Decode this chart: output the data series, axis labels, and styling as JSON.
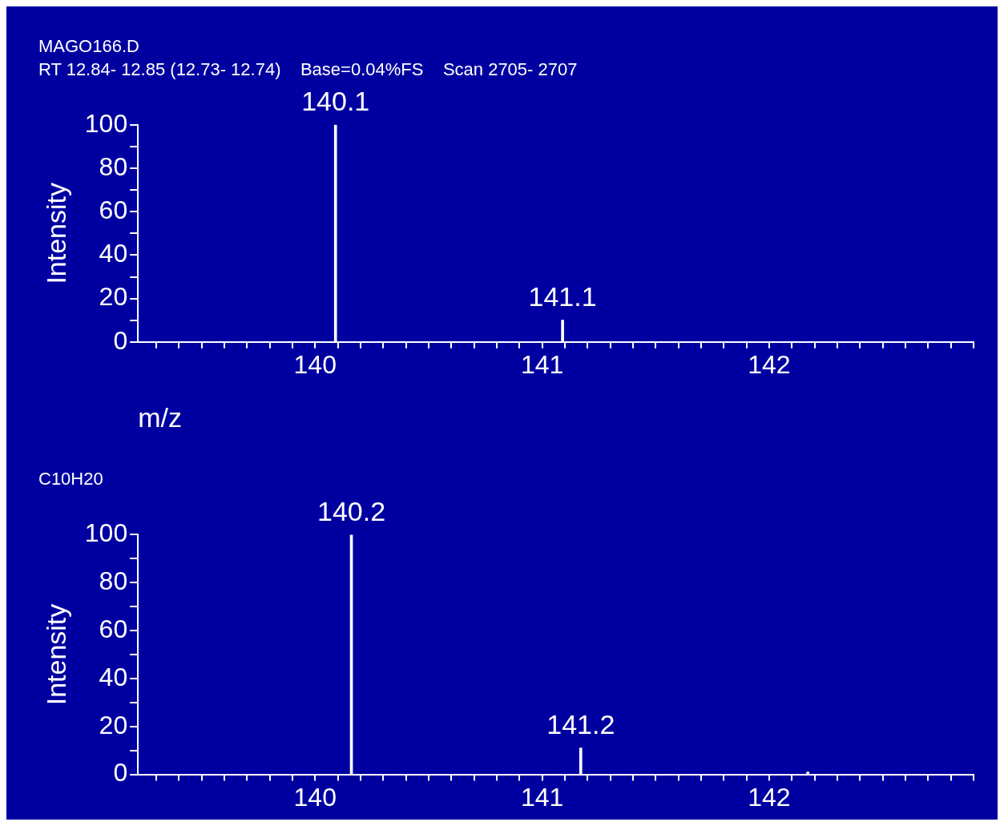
{
  "chart_data": [
    {
      "type": "bar",
      "title": "MAGO166.D",
      "subtitle": "RT 12.84- 12.85 (12.73- 12.74)    Base=0.04%FS    Scan 2705- 2707",
      "xlabel": "m/z",
      "ylabel": "Intensity",
      "x": [
        140.09,
        141.09
      ],
      "values": [
        100,
        10
      ],
      "color": "#ffffff",
      "annotations": [
        {
          "text": "140.1",
          "x": 140.09,
          "y": 100
        },
        {
          "text": "141.1",
          "x": 141.09,
          "y": 10
        }
      ],
      "xlim": [
        139.22,
        142.9
      ],
      "xticks": [
        {
          "value": 139.3,
          "label": null
        },
        {
          "value": 139.4,
          "label": null
        },
        {
          "value": 139.5,
          "label": null
        },
        {
          "value": 139.6,
          "label": null
        },
        {
          "value": 139.7,
          "label": null
        },
        {
          "value": 139.8,
          "label": null
        },
        {
          "value": 139.9,
          "label": null
        },
        140,
        {
          "value": 140.1,
          "label": null
        },
        {
          "value": 140.2,
          "label": null
        },
        {
          "value": 140.3,
          "label": null
        },
        {
          "value": 140.4,
          "label": null
        },
        {
          "value": 140.5,
          "label": null
        },
        {
          "value": 140.6,
          "label": null
        },
        {
          "value": 140.7,
          "label": null
        },
        {
          "value": 140.8,
          "label": null
        },
        {
          "value": 140.9,
          "label": null
        },
        141,
        {
          "value": 141.1,
          "label": null
        },
        {
          "value": 141.2,
          "label": null
        },
        {
          "value": 141.3,
          "label": null
        },
        {
          "value": 141.4,
          "label": null
        },
        {
          "value": 141.5,
          "label": null
        },
        {
          "value": 141.6,
          "label": null
        },
        {
          "value": 141.7,
          "label": null
        },
        {
          "value": 141.8,
          "label": null
        },
        {
          "value": 141.9,
          "label": null
        },
        142,
        {
          "value": 142.1,
          "label": null
        },
        {
          "value": 142.2,
          "label": null
        },
        {
          "value": 142.3,
          "label": null
        },
        {
          "value": 142.4,
          "label": null
        },
        {
          "value": 142.5,
          "label": null
        },
        {
          "value": 142.6,
          "label": null
        },
        {
          "value": 142.7,
          "label": null
        },
        {
          "value": 142.8,
          "label": null
        },
        {
          "value": 142.9,
          "label": null
        }
      ],
      "ylim": [
        0,
        100
      ],
      "yticks": [
        0,
        {
          "value": 10,
          "label": null
        },
        20,
        {
          "value": 30,
          "label": null
        },
        40,
        {
          "value": 50,
          "label": null
        },
        60,
        {
          "value": 70,
          "label": null
        },
        80,
        {
          "value": 90,
          "label": null
        },
        100
      ],
      "grid": false,
      "legend": false
    },
    {
      "type": "bar",
      "title": "C10H20",
      "ylabel": "Intensity",
      "x": [
        140.16,
        141.17,
        142.17
      ],
      "values": [
        100,
        11,
        1
      ],
      "color": "#ffffff",
      "annotations": [
        {
          "text": "140.2",
          "x": 140.16,
          "y": 100
        },
        {
          "text": "141.2",
          "x": 141.17,
          "y": 11
        }
      ],
      "xlim": [
        139.22,
        142.9
      ],
      "xticks": [
        {
          "value": 139.3,
          "label": null
        },
        {
          "value": 139.4,
          "label": null
        },
        {
          "value": 139.5,
          "label": null
        },
        {
          "value": 139.6,
          "label": null
        },
        {
          "value": 139.7,
          "label": null
        },
        {
          "value": 139.8,
          "label": null
        },
        {
          "value": 139.9,
          "label": null
        },
        140,
        {
          "value": 140.1,
          "label": null
        },
        {
          "value": 140.2,
          "label": null
        },
        {
          "value": 140.3,
          "label": null
        },
        {
          "value": 140.4,
          "label": null
        },
        {
          "value": 140.5,
          "label": null
        },
        {
          "value": 140.6,
          "label": null
        },
        {
          "value": 140.7,
          "label": null
        },
        {
          "value": 140.8,
          "label": null
        },
        {
          "value": 140.9,
          "label": null
        },
        141,
        {
          "value": 141.1,
          "label": null
        },
        {
          "value": 141.2,
          "label": null
        },
        {
          "value": 141.3,
          "label": null
        },
        {
          "value": 141.4,
          "label": null
        },
        {
          "value": 141.5,
          "label": null
        },
        {
          "value": 141.6,
          "label": null
        },
        {
          "value": 141.7,
          "label": null
        },
        {
          "value": 141.8,
          "label": null
        },
        {
          "value": 141.9,
          "label": null
        },
        142,
        {
          "value": 142.1,
          "label": null
        },
        {
          "value": 142.2,
          "label": null
        },
        {
          "value": 142.3,
          "label": null
        },
        {
          "value": 142.4,
          "label": null
        },
        {
          "value": 142.5,
          "label": null
        },
        {
          "value": 142.6,
          "label": null
        },
        {
          "value": 142.7,
          "label": null
        },
        {
          "value": 142.8,
          "label": null
        },
        {
          "value": 142.9,
          "label": null
        }
      ],
      "ylim": [
        0,
        100
      ],
      "yticks": [
        0,
        {
          "value": 10,
          "label": null
        },
        20,
        {
          "value": 30,
          "label": null
        },
        40,
        {
          "value": 50,
          "label": null
        },
        60,
        {
          "value": 70,
          "label": null
        },
        80,
        {
          "value": 90,
          "label": null
        },
        100
      ],
      "grid": false,
      "legend": false
    }
  ]
}
